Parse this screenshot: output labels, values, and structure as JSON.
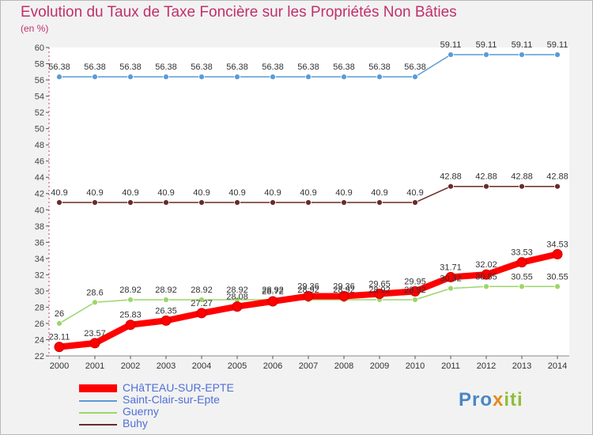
{
  "header": {
    "title": "Evolution du Taux de Taxe Foncière sur les Propriétés Non Bâties",
    "unit": "(en %)"
  },
  "logo": {
    "part1": "Pro",
    "part2": "x",
    "part3": "iti"
  },
  "colors": {
    "chateau": "#ff0000",
    "saint_clair": "#5b9bd5",
    "guerny": "#9ad76a",
    "buhy": "#6b2a2a",
    "title": "#c0306a",
    "legend_text": "#4f6fd8"
  },
  "chart_data": {
    "type": "line",
    "title": "Evolution du Taux de Taxe Foncière sur les Propriétés Non Bâties",
    "ylabel": "(en %)",
    "xlabel": "",
    "x": [
      "2000",
      "2001",
      "2002",
      "2003",
      "2004",
      "2005",
      "2006",
      "2007",
      "2008",
      "2009",
      "2010",
      "2011",
      "2012",
      "2013",
      "2014"
    ],
    "ylim": [
      22,
      60
    ],
    "yticks": [
      22,
      24,
      26,
      28,
      30,
      32,
      34,
      36,
      38,
      40,
      42,
      44,
      46,
      48,
      50,
      52,
      54,
      56,
      58,
      60
    ],
    "grid": false,
    "legend_position": "bottom-left",
    "series": [
      {
        "name": "CHâTEAU-SUR-EPTE",
        "color": "#ff0000",
        "values": [
          23.11,
          23.57,
          25.83,
          26.35,
          27.27,
          28.08,
          28.72,
          29.36,
          29.36,
          29.65,
          29.95,
          31.71,
          32.02,
          33.53,
          34.53
        ],
        "labels": [
          "23.11",
          "23.57",
          "25.83",
          "26.35",
          "27.27",
          "28.08",
          "28.72",
          "29.36",
          "29.36",
          "29.65",
          "29.95",
          "31.71",
          "32.02",
          "33.53",
          "34.53"
        ]
      },
      {
        "name": "Saint-Clair-sur-Epte",
        "color": "#5b9bd5",
        "values": [
          56.38,
          56.38,
          56.38,
          56.38,
          56.38,
          56.38,
          56.38,
          56.38,
          56.38,
          56.38,
          56.38,
          59.11,
          59.11,
          59.11,
          59.11
        ],
        "labels": [
          "56.38",
          "56.38",
          "56.38",
          "56.38",
          "56.38",
          "56.38",
          "56.38",
          "56.38",
          "56.38",
          "56.38",
          "56.38",
          "59.11",
          "59.11",
          "59.11",
          "59.11"
        ]
      },
      {
        "name": "Guerny",
        "color": "#9ad76a",
        "values": [
          26.0,
          28.6,
          28.92,
          28.92,
          28.92,
          28.92,
          28.92,
          28.92,
          28.92,
          28.92,
          28.92,
          30.32,
          30.55,
          30.55,
          30.55
        ],
        "labels": [
          "26",
          "28.6",
          "28.92",
          "28.92",
          "28.92",
          "28.92",
          "28.92",
          "28.92",
          "28.92",
          "28.92",
          "28.92",
          "30.32",
          "30.55",
          "30.55",
          "30.55"
        ]
      },
      {
        "name": "Buhy",
        "color": "#6b2a2a",
        "values": [
          40.9,
          40.9,
          40.9,
          40.9,
          40.9,
          40.9,
          40.9,
          40.9,
          40.9,
          40.9,
          40.9,
          42.88,
          42.88,
          42.88,
          42.88
        ],
        "labels": [
          "40.9",
          "40.9",
          "40.9",
          "40.9",
          "40.9",
          "40.9",
          "40.9",
          "40.9",
          "40.9",
          "40.9",
          "40.9",
          "42.88",
          "42.88",
          "42.88",
          "42.88"
        ]
      }
    ]
  }
}
